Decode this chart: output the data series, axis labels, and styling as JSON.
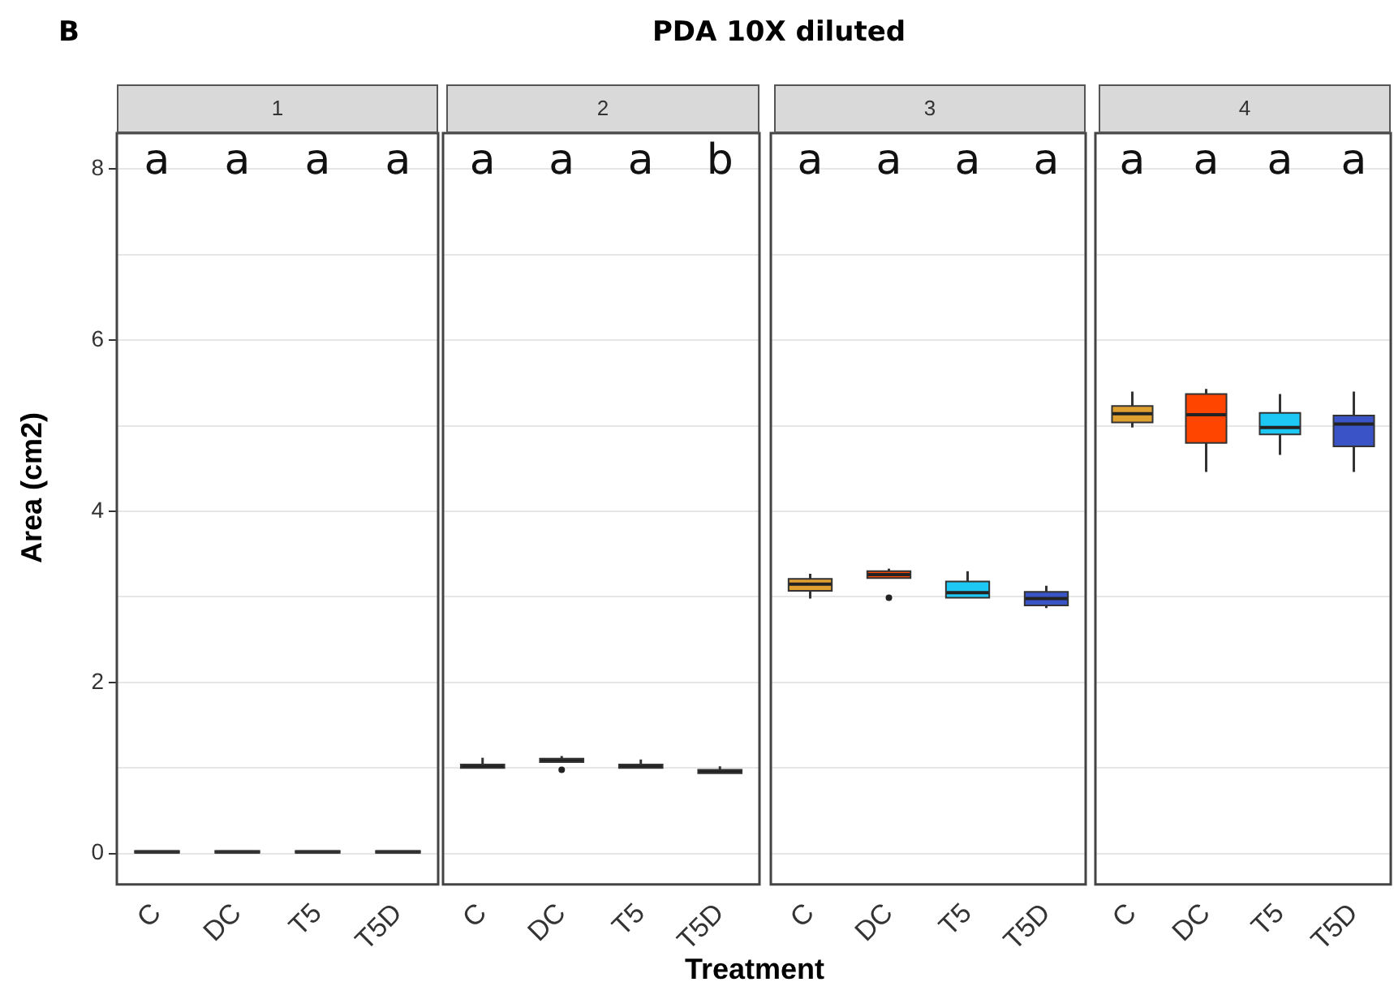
{
  "chart_data": [
    {
      "type": "box",
      "subtitle": "1",
      "ylabel": "Area (cm2)",
      "categories": [
        "C",
        "DC",
        "T5",
        "T5D"
      ],
      "colors": [
        "#333333",
        "#333333",
        "#333333",
        "#333333"
      ],
      "boxes": [
        {
          "low": 0.01,
          "q1": 0.01,
          "median": 0.02,
          "q3": 0.03,
          "high": 0.03
        },
        {
          "low": 0.01,
          "q1": 0.01,
          "median": 0.02,
          "q3": 0.03,
          "high": 0.03
        },
        {
          "low": 0.01,
          "q1": 0.01,
          "median": 0.02,
          "q3": 0.03,
          "high": 0.03
        },
        {
          "low": 0.01,
          "q1": 0.01,
          "median": 0.02,
          "q3": 0.03,
          "high": 0.03
        }
      ],
      "ylim": [
        -0.36,
        8.42
      ],
      "yticks": [
        0,
        {
          "value": 1,
          "label": null
        },
        2,
        {
          "value": 3,
          "label": null
        },
        4,
        {
          "value": 5,
          "label": null
        },
        6,
        {
          "value": 7,
          "label": null
        },
        8
      ],
      "grid": "y",
      "annotations": [
        "B",
        "a",
        "a",
        "a",
        "a"
      ]
    },
    {
      "type": "box",
      "title": "PDA 10X diluted",
      "xlabel": "Treatment",
      "subtitle": "2",
      "categories": [
        "C",
        "DC",
        "T5",
        "T5D"
      ],
      "colors": [
        "#333333",
        "#333333",
        "#333333",
        "#333333"
      ],
      "boxes": [
        {
          "low": 1.0,
          "q1": 1.0,
          "median": 1.02,
          "q3": 1.04,
          "high": 1.12
        },
        {
          "low": 1.07,
          "q1": 1.07,
          "median": 1.09,
          "q3": 1.11,
          "high": 1.14,
          "outliers": [
            0.98
          ]
        },
        {
          "low": 1.0,
          "q1": 1.0,
          "median": 1.02,
          "q3": 1.04,
          "high": 1.1
        },
        {
          "low": 0.94,
          "q1": 0.94,
          "median": 0.96,
          "q3": 0.98,
          "high": 1.02
        }
      ],
      "ylim": [
        -0.36,
        8.42
      ],
      "yticks": [
        0,
        {
          "value": 1,
          "label": null
        },
        2,
        {
          "value": 3,
          "label": null
        },
        4,
        {
          "value": 5,
          "label": null
        },
        6,
        {
          "value": 7,
          "label": null
        },
        8
      ],
      "grid": "y",
      "tick_labels": "x",
      "annotations": [
        "a",
        "a",
        "a",
        "b"
      ]
    },
    {
      "type": "box",
      "subtitle": "3",
      "categories": [
        "C",
        "DC",
        "T5",
        "T5D"
      ],
      "colors": [
        "#e0a030",
        "#ff4500",
        "#1ec8f5",
        "#3a54c8"
      ],
      "boxes": [
        {
          "low": 2.98,
          "q1": 3.07,
          "median": 3.15,
          "q3": 3.21,
          "high": 3.27
        },
        {
          "low": 3.22,
          "q1": 3.22,
          "median": 3.26,
          "q3": 3.3,
          "high": 3.33,
          "outliers": [
            2.99
          ]
        },
        {
          "low": 2.99,
          "q1": 2.99,
          "median": 3.05,
          "q3": 3.18,
          "high": 3.3
        },
        {
          "low": 2.87,
          "q1": 2.9,
          "median": 2.98,
          "q3": 3.06,
          "high": 3.13
        }
      ],
      "ylim": [
        -0.36,
        8.42
      ],
      "yticks": [
        0,
        {
          "value": 1,
          "label": null
        },
        2,
        {
          "value": 3,
          "label": null
        },
        4,
        {
          "value": 5,
          "label": null
        },
        6,
        {
          "value": 7,
          "label": null
        },
        8
      ],
      "grid": "y",
      "tick_labels": "x",
      "annotations": [
        "a",
        "a",
        "a",
        "a"
      ]
    },
    {
      "type": "box",
      "subtitle": "4",
      "categories": [
        "C",
        "DC",
        "T5",
        "T5D"
      ],
      "colors": [
        "#e0a030",
        "#ff4500",
        "#1ec8f5",
        "#3a54c8"
      ],
      "boxes": [
        {
          "low": 4.98,
          "q1": 5.04,
          "median": 5.14,
          "q3": 5.23,
          "high": 5.4
        },
        {
          "low": 4.46,
          "q1": 4.8,
          "median": 5.13,
          "q3": 5.37,
          "high": 5.43
        },
        {
          "low": 4.66,
          "q1": 4.9,
          "median": 4.98,
          "q3": 5.15,
          "high": 5.37
        },
        {
          "low": 4.46,
          "q1": 4.76,
          "median": 5.02,
          "q3": 5.12,
          "high": 5.4
        }
      ],
      "ylim": [
        -0.36,
        8.42
      ],
      "yticks": [
        0,
        {
          "value": 1,
          "label": null
        },
        2,
        {
          "value": 3,
          "label": null
        },
        4,
        {
          "value": 5,
          "label": null
        },
        6,
        {
          "value": 7,
          "label": null
        },
        8
      ],
      "grid": "y",
      "tick_labels": "x",
      "annotations": [
        "a",
        "a",
        "a",
        "a"
      ]
    }
  ]
}
